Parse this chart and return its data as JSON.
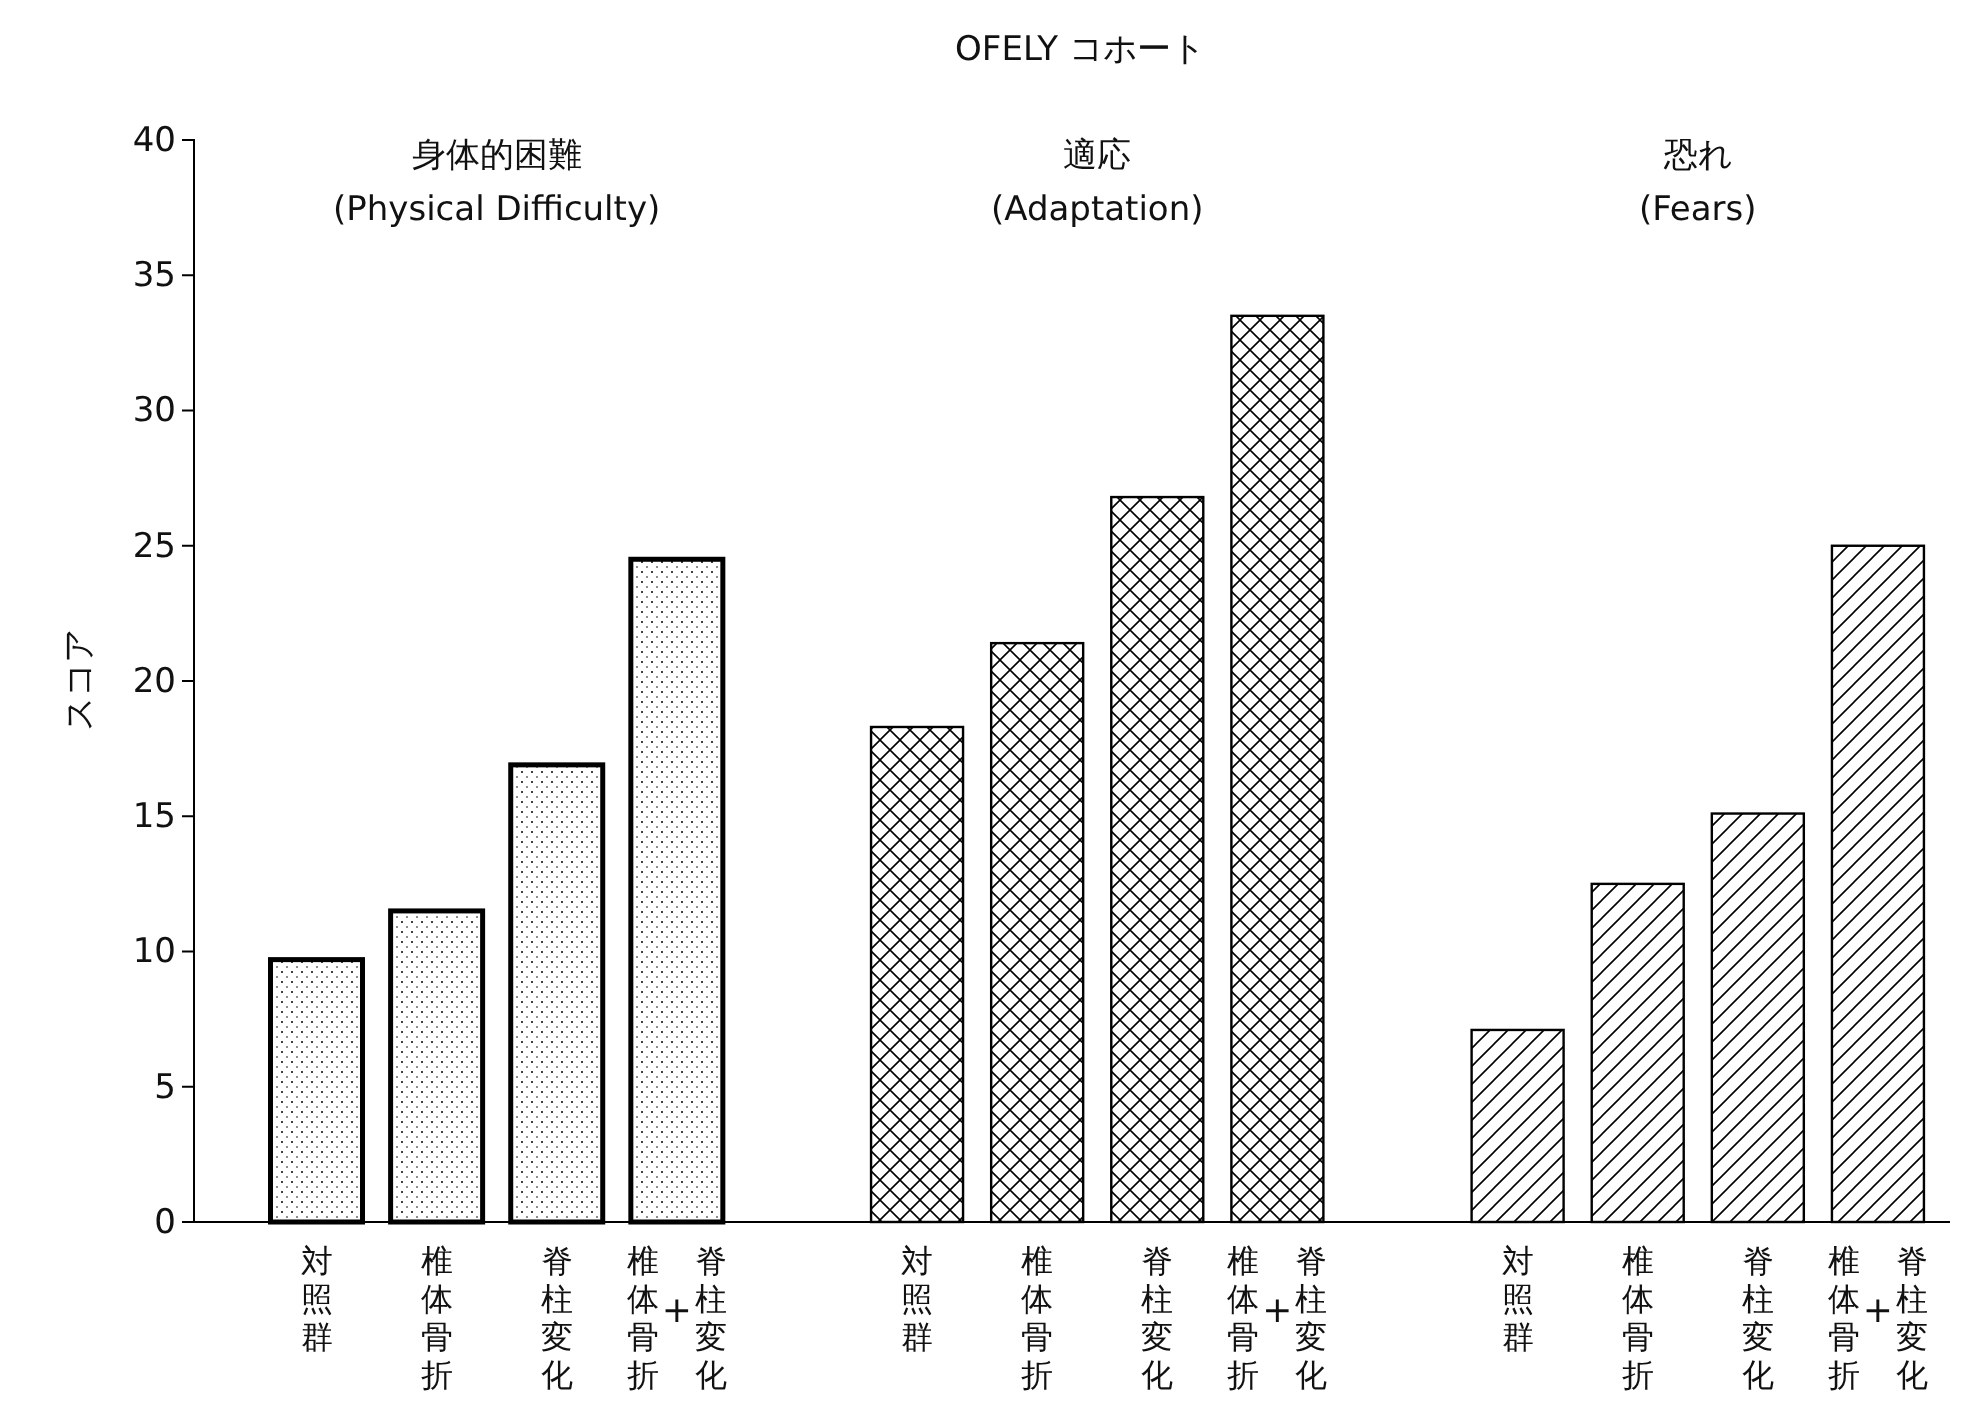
{
  "chart_data": {
    "type": "bar",
    "title": "OFELY コホート",
    "ylabel": "スコア",
    "categories": [
      "対照群",
      "椎体骨折",
      "脊柱変化",
      "椎体骨折+脊柱変化",
      "対照群",
      "椎体骨折",
      "脊柱変化",
      "椎体骨折+脊柱変化",
      "対照群",
      "椎体骨折",
      "脊柱変化",
      "椎体骨折+脊柱変化"
    ],
    "series": [
      {
        "color": "#000000",
        "values": [
          9.7,
          11.5,
          16.9,
          24.5,
          null,
          null,
          null,
          null,
          null,
          null,
          null,
          null
        ]
      },
      {
        "color": "#000000",
        "values": [
          null,
          null,
          null,
          null,
          18.3,
          21.4,
          26.8,
          33.5,
          null,
          null,
          null,
          null
        ]
      },
      {
        "color": "#000000",
        "values": [
          null,
          null,
          null,
          null,
          null,
          null,
          null,
          null,
          7.1,
          12.5,
          15.1,
          25.0
        ]
      }
    ],
    "ylim": [
      0,
      40
    ],
    "yticks": [
      0,
      5,
      10,
      15,
      20,
      25,
      30,
      35,
      40
    ],
    "annotations": [
      "身体的困難\n(Physical Difficulty)",
      "適応\n(Adaptation)",
      "恐れ\n(Fears)"
    ],
    "grid": false
  }
}
